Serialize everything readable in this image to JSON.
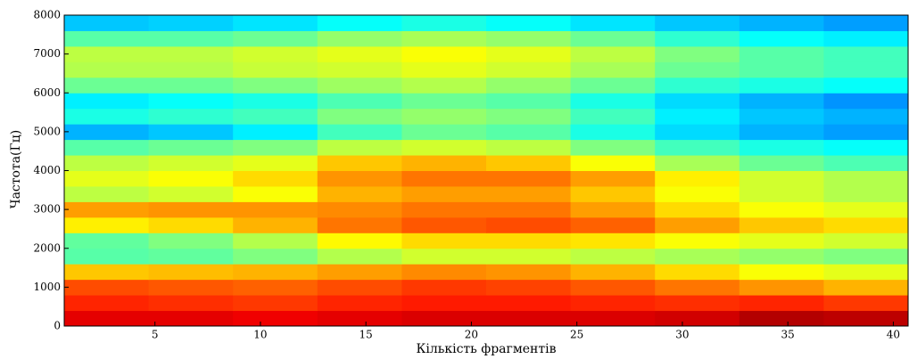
{
  "chart_data": {
    "type": "heatmap",
    "xlabel": "Кількість фрагментів",
    "ylabel": "Частота(Гц)",
    "colormap": "jet",
    "zlim": [
      0,
      100
    ],
    "xbins": [
      0.7,
      4.7,
      8.7,
      12.7,
      16.7,
      20.7,
      24.7,
      28.7,
      32.7,
      36.7,
      40.7
    ],
    "ybins": [
      0,
      400,
      800,
      1200,
      1600,
      2000,
      2400,
      2800,
      3200,
      3600,
      4000,
      4400,
      4800,
      5200,
      5600,
      6000,
      6400,
      6800,
      7200,
      7600,
      8000
    ],
    "z": [
      [
        90,
        90,
        89,
        90,
        91,
        91,
        91,
        92,
        95,
        94
      ],
      [
        84,
        83,
        82,
        84,
        85,
        85,
        84,
        83,
        84,
        82
      ],
      [
        80,
        79,
        78,
        80,
        82,
        81,
        79,
        76,
        73,
        70
      ],
      [
        68,
        69,
        70,
        72,
        74,
        73,
        70,
        66,
        62,
        60
      ],
      [
        46,
        47,
        50,
        55,
        58,
        58,
        56,
        54,
        52,
        50
      ],
      [
        47,
        50,
        55,
        63,
        66,
        66,
        65,
        62,
        60,
        58
      ],
      [
        64,
        66,
        70,
        76,
        79,
        80,
        78,
        72,
        68,
        66
      ],
      [
        72,
        73,
        73,
        74,
        76,
        76,
        72,
        66,
        62,
        60
      ],
      [
        56,
        58,
        62,
        70,
        72,
        72,
        68,
        62,
        58,
        55
      ],
      [
        60,
        62,
        66,
        73,
        76,
        76,
        72,
        64,
        58,
        55
      ],
      [
        56,
        58,
        60,
        68,
        70,
        68,
        62,
        54,
        48,
        45
      ],
      [
        46,
        48,
        50,
        56,
        58,
        56,
        50,
        44,
        40,
        38
      ],
      [
        30,
        32,
        36,
        44,
        48,
        46,
        40,
        34,
        30,
        28
      ],
      [
        40,
        42,
        44,
        50,
        52,
        50,
        44,
        36,
        32,
        30
      ],
      [
        36,
        38,
        40,
        45,
        48,
        46,
        40,
        34,
        30,
        27
      ],
      [
        48,
        48,
        50,
        53,
        55,
        52,
        48,
        42,
        40,
        38
      ],
      [
        55,
        55,
        57,
        58,
        60,
        58,
        54,
        48,
        46,
        44
      ],
      [
        56,
        56,
        58,
        60,
        62,
        60,
        56,
        50,
        46,
        44
      ],
      [
        46,
        46,
        48,
        52,
        54,
        52,
        48,
        42,
        38,
        36
      ],
      [
        32,
        33,
        35,
        38,
        40,
        38,
        35,
        32,
        30,
        28
      ]
    ],
    "xlim": [
      0.7,
      40.7
    ],
    "ylim": [
      0,
      8000
    ],
    "xticks": [
      5,
      10,
      15,
      20,
      25,
      30,
      35,
      40
    ],
    "yticks": [
      0,
      1000,
      2000,
      3000,
      4000,
      5000,
      6000,
      7000,
      8000
    ]
  }
}
